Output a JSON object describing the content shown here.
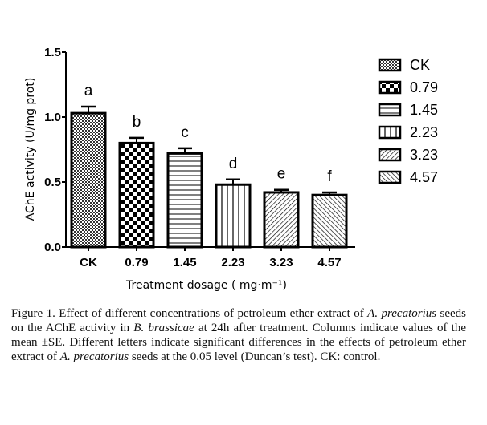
{
  "chart_data": {
    "type": "bar",
    "categories": [
      "CK",
      "0.79",
      "1.45",
      "2.23",
      "3.23",
      "4.57"
    ],
    "values": [
      1.03,
      0.8,
      0.72,
      0.48,
      0.42,
      0.4
    ],
    "errors": [
      0.05,
      0.04,
      0.04,
      0.04,
      0.02,
      0.02
    ],
    "significance_letters": [
      "a",
      "b",
      "c",
      "d",
      "e",
      "f"
    ],
    "patterns": [
      "fine-checker",
      "checker",
      "horizontal",
      "vertical",
      "diagonal-right",
      "diagonal-left"
    ],
    "xlabel": "Treatment dosage ( mg·m⁻¹)",
    "ylabel": "AChE activity (U/mg prot)",
    "ylim": [
      0,
      1.5
    ],
    "yticks": [
      "0.0",
      "0.5",
      "1.0",
      "1.5"
    ],
    "legend": {
      "placement": "right",
      "entries": [
        "CK",
        "0.79",
        "1.45",
        "2.23",
        "3.23",
        "4.57"
      ]
    }
  },
  "caption": {
    "text_before_1": "Figure 1. Effect of different concentrations of petroleum ether extract of ",
    "italic_1": "A. precatorius",
    "text_before_2": " seeds on the AChE activity in ",
    "italic_2": "B. brassicae",
    "text_before_3": " at 24h after treatment. Columns indicate values of the mean ±SE. Different letters indicate significant differences in the effects of petroleum ether extract of ",
    "italic_3": "A. precatorius",
    "text_end": " seeds at the 0.05 level (Duncan’s test). CK: control."
  }
}
